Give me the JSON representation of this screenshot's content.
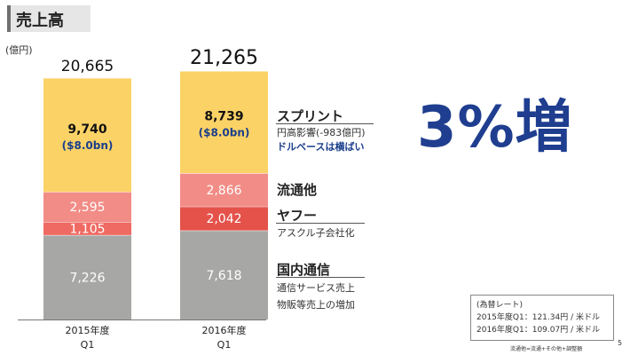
{
  "header": {
    "title": "売上高",
    "unit": "(億円)"
  },
  "chart_data": {
    "type": "bar",
    "stacked": true,
    "categories": [
      {
        "line1": "2015年度",
        "line2": "Q1"
      },
      {
        "line1": "2016年度",
        "line2": "Q1"
      }
    ],
    "totals": [
      "20,665",
      "21,265"
    ],
    "total_values": [
      20665,
      21265
    ],
    "series": [
      {
        "name": "国内通信",
        "color": "#a7a7a5",
        "values": [
          7226,
          7618
        ],
        "labels": [
          "7,226",
          "7,618"
        ]
      },
      {
        "name": "ヤフー",
        "color_2015": "#ee6a62",
        "color_2016": "#e4524a",
        "values": [
          1105,
          2042
        ],
        "labels": [
          "1,105",
          "2,042"
        ]
      },
      {
        "name": "流通他",
        "color": "#f28c86",
        "values": [
          2595,
          2866
        ],
        "labels": [
          "2,595",
          "2,866"
        ]
      },
      {
        "name": "スプリント",
        "color": "#fbd266",
        "values": [
          9740,
          8739
        ],
        "labels": [
          "9,740",
          "8,739"
        ],
        "sublabels": [
          "($8.0bn)",
          "($8.0bn)"
        ]
      }
    ],
    "ylim": [
      0,
      21265
    ]
  },
  "annotations": {
    "sprint": {
      "title": "スプリント",
      "sub1": "円高影響(-983億円)",
      "sub2": "ドルベースは横ばい"
    },
    "ryutsu": {
      "title": "流通他"
    },
    "yahoo": {
      "title": "ヤフー",
      "sub1": "アスクル子会社化"
    },
    "domestic": {
      "title": "国内通信",
      "sub1": "通信サービス売上",
      "sub2": "物販等売上の増加"
    }
  },
  "highlight": "3%増",
  "fx_box": {
    "title": "(為替レート)",
    "line1": "2015年度Q1：121.34円 / 米ドル",
    "line2": "2016年度Q1：109.07円 / 米ドル"
  },
  "footnote": "流通他=流通+その他+調整額",
  "page_number": "5",
  "colors": {
    "accent_blue": "#1f3e8f",
    "blue_text": "#1a3e8c"
  }
}
